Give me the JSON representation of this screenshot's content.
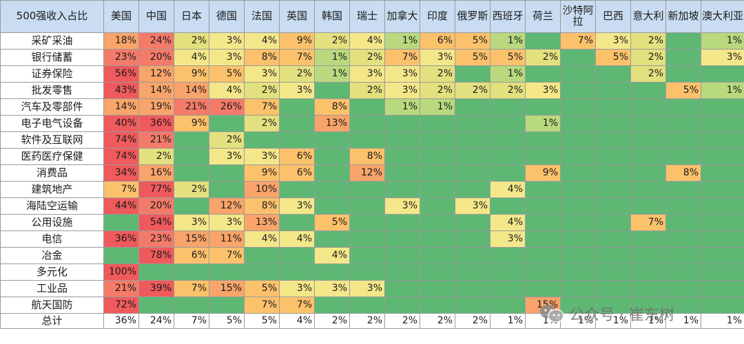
{
  "corner_label": "500强收入占比",
  "countries": [
    "美国",
    "中国",
    "日本",
    "德国",
    "法国",
    "英国",
    "韩国",
    "瑞士",
    "加拿大",
    "印度",
    "俄罗斯",
    "西班牙",
    "荷兰",
    "沙特阿拉",
    "巴西",
    "意大利",
    "新加坡",
    "澳大利亚"
  ],
  "rows": [
    {
      "label": "采矿采油",
      "values": [
        "18%",
        "24%",
        "2%",
        "3%",
        "4%",
        "9%",
        "2%",
        "4%",
        "1%",
        "6%",
        "5%",
        "1%",
        "",
        "7%",
        "3%",
        "2%",
        "",
        "1%"
      ]
    },
    {
      "label": "银行储蓄",
      "values": [
        "23%",
        "20%",
        "4%",
        "3%",
        "8%",
        "7%",
        "1%",
        "2%",
        "7%",
        "3%",
        "5%",
        "5%",
        "2%",
        "",
        "5%",
        "2%",
        "",
        "3%"
      ]
    },
    {
      "label": "证券保险",
      "values": [
        "56%",
        "12%",
        "9%",
        "5%",
        "3%",
        "2%",
        "1%",
        "3%",
        "3%",
        "2%",
        "",
        "1%",
        "",
        "",
        "",
        "2%",
        "",
        ""
      ]
    },
    {
      "label": "批发零售",
      "values": [
        "43%",
        "14%",
        "14%",
        "4%",
        "2%",
        "3%",
        "",
        "2%",
        "3%",
        "2%",
        "2%",
        "2%",
        "3%",
        "",
        "",
        "",
        "5%",
        "1%"
      ]
    },
    {
      "label": "汽车及零部件",
      "values": [
        "14%",
        "19%",
        "21%",
        "26%",
        "7%",
        "",
        "8%",
        "",
        "1%",
        "1%",
        "",
        "",
        "",
        "",
        "",
        "",
        "",
        ""
      ]
    },
    {
      "label": "电子电气设备",
      "values": [
        "40%",
        "36%",
        "9%",
        "",
        "2%",
        "",
        "13%",
        "",
        "",
        "",
        "",
        "",
        "1%",
        "",
        "",
        "",
        "",
        ""
      ]
    },
    {
      "label": "软件及互联网",
      "values": [
        "74%",
        "21%",
        "",
        "2%",
        "",
        "",
        "",
        "",
        "",
        "",
        "",
        "",
        "",
        "",
        "",
        "",
        "",
        ""
      ]
    },
    {
      "label": "医药医疗保健",
      "values": [
        "74%",
        "2%",
        "",
        "3%",
        "3%",
        "6%",
        "",
        "8%",
        "",
        "",
        "",
        "",
        "",
        "",
        "",
        "",
        "",
        ""
      ]
    },
    {
      "label": "消费品",
      "values": [
        "34%",
        "16%",
        "",
        "",
        "9%",
        "6%",
        "",
        "12%",
        "",
        "",
        "",
        "",
        "9%",
        "",
        "",
        "",
        "8%",
        ""
      ]
    },
    {
      "label": "建筑地产",
      "values": [
        "7%",
        "77%",
        "2%",
        "",
        "10%",
        "",
        "",
        "",
        "",
        "",
        "",
        "4%",
        "",
        "",
        "",
        "",
        "",
        ""
      ]
    },
    {
      "label": "海陆空运输",
      "values": [
        "44%",
        "20%",
        "",
        "12%",
        "8%",
        "3%",
        "",
        "",
        "3%",
        "",
        "3%",
        "",
        "",
        "",
        "",
        "",
        "",
        ""
      ]
    },
    {
      "label": "公用设施",
      "values": [
        "",
        "54%",
        "3%",
        "3%",
        "13%",
        "",
        "5%",
        "",
        "",
        "",
        "",
        "4%",
        "",
        "",
        "",
        "7%",
        "",
        ""
      ]
    },
    {
      "label": "电信",
      "values": [
        "36%",
        "23%",
        "15%",
        "11%",
        "4%",
        "4%",
        "",
        "",
        "",
        "",
        "",
        "3%",
        "",
        "",
        "",
        "",
        "",
        ""
      ]
    },
    {
      "label": "冶金",
      "values": [
        "",
        "78%",
        "6%",
        "7%",
        "",
        "",
        "4%",
        "",
        "",
        "",
        "",
        "",
        "",
        "",
        "",
        "",
        "",
        ""
      ]
    },
    {
      "label": "多元化",
      "values": [
        "100%",
        "",
        "",
        "",
        "",
        "",
        "",
        "",
        "",
        "",
        "",
        "",
        "",
        "",
        "",
        "",
        "",
        ""
      ]
    },
    {
      "label": "工业品",
      "values": [
        "21%",
        "39%",
        "7%",
        "15%",
        "5%",
        "3%",
        "3%",
        "3%",
        "",
        "",
        "",
        "",
        "",
        "",
        "",
        "",
        "",
        ""
      ]
    },
    {
      "label": "航天国防",
      "values": [
        "72%",
        "",
        "",
        "",
        "7%",
        "7%",
        "",
        "",
        "",
        "",
        "",
        "",
        "15%",
        "",
        "",
        "",
        "",
        ""
      ]
    }
  ],
  "total": {
    "label": "总计",
    "values": [
      "36%",
      "24%",
      "7%",
      "5%",
      "5%",
      "4%",
      "2%",
      "2%",
      "2%",
      "2%",
      "2%",
      "1%",
      "1%",
      "1%",
      "1%",
      "1%",
      "1%",
      "1%"
    ]
  },
  "watermark": "公众号 · 崔东树",
  "colors": {
    "header_bg": "#c9dcf1",
    "empty_cell": "#5eb873",
    "border": "#9a9a9a",
    "hi": "#ef5a5c",
    "mid": "#fcc16b",
    "lo": "#f4e78a",
    "faint": "#b8d97e"
  }
}
